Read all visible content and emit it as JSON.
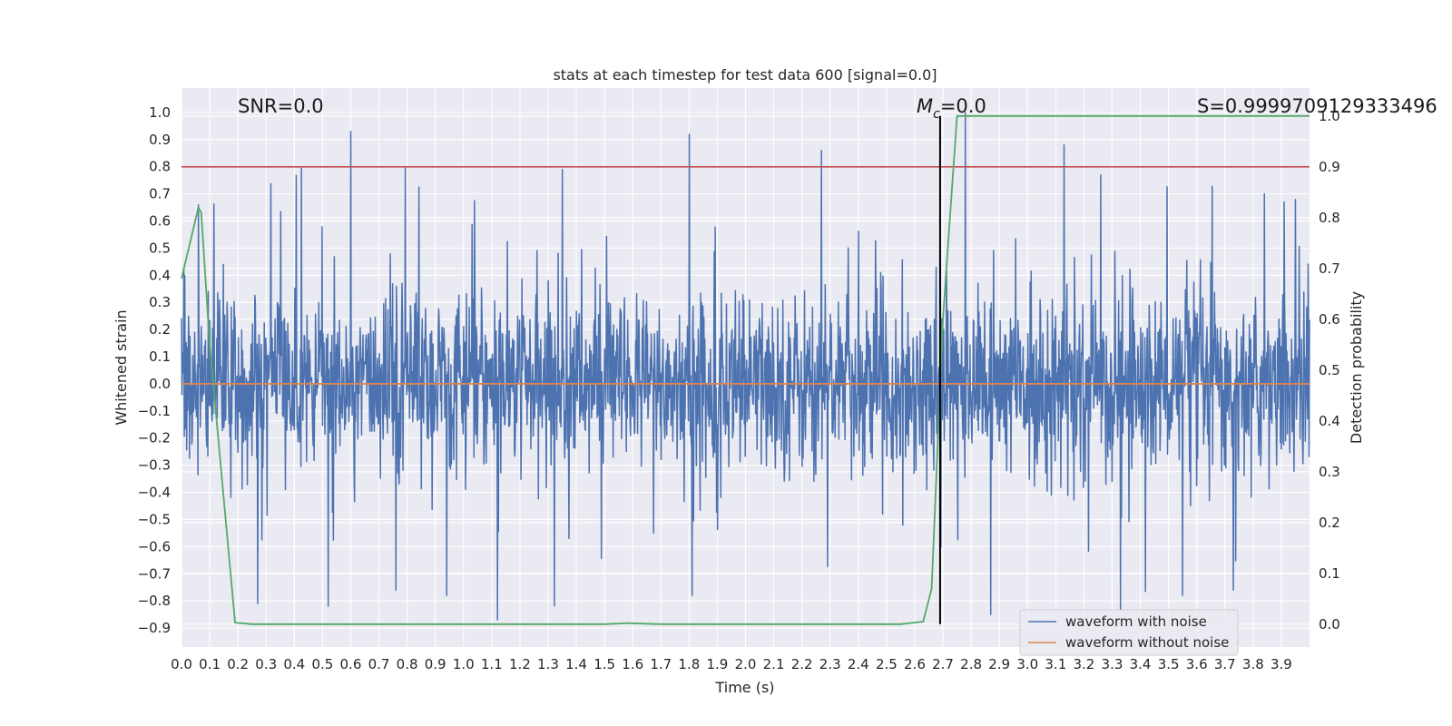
{
  "chart_data": {
    "type": "line",
    "title": "stats at each timestep for test data 600 [signal=0.0]",
    "xlabel": "Time (s)",
    "ylabel": "Whitened strain",
    "y2label": "Detection probability",
    "xlim": [
      0.0,
      4.0
    ],
    "ylim": [
      -0.97,
      1.09
    ],
    "y2lim": [
      -0.045,
      1.055
    ],
    "xticks": [
      0.0,
      0.1,
      0.2,
      0.3,
      0.4,
      0.5,
      0.6,
      0.7,
      0.8,
      0.9,
      1.0,
      1.1,
      1.2,
      1.3,
      1.4,
      1.5,
      1.6,
      1.7,
      1.8,
      1.9,
      2.0,
      2.1,
      2.2,
      2.3,
      2.4,
      2.5,
      2.6,
      2.7,
      2.8,
      2.9,
      3.0,
      3.1,
      3.2,
      3.3,
      3.4,
      3.5,
      3.6,
      3.7,
      3.8,
      3.9
    ],
    "xtick_labels": [
      "0.0",
      "0.1",
      "0.2",
      "0.3",
      "0.4",
      "0.5",
      "0.6",
      "0.7",
      "0.8",
      "0.9",
      "1.0",
      "1.1",
      "1.2",
      "1.3",
      "1.4",
      "1.5",
      "1.6",
      "1.7",
      "1.8",
      "1.9",
      "2.0",
      "2.1",
      "2.2",
      "2.3",
      "2.4",
      "2.5",
      "2.6",
      "2.7",
      "2.8",
      "2.9",
      "3.0",
      "3.1",
      "3.2",
      "3.3",
      "3.4",
      "3.5",
      "3.6",
      "3.7",
      "3.8",
      "3.9"
    ],
    "yticks": [
      -0.9,
      -0.8,
      -0.7,
      -0.6,
      -0.5,
      -0.4,
      -0.3,
      -0.2,
      -0.1,
      0.0,
      0.1,
      0.2,
      0.3,
      0.4,
      0.5,
      0.6,
      0.7,
      0.8,
      0.9,
      1.0
    ],
    "ytick_labels": [
      "−0.9",
      "−0.8",
      "−0.7",
      "−0.6",
      "−0.5",
      "−0.4",
      "−0.3",
      "−0.2",
      "−0.1",
      "0.0",
      "0.1",
      "0.2",
      "0.3",
      "0.4",
      "0.5",
      "0.6",
      "0.7",
      "0.8",
      "0.9",
      "1.0"
    ],
    "y2ticks": [
      0.0,
      0.1,
      0.2,
      0.3,
      0.4,
      0.5,
      0.6,
      0.7,
      0.8,
      0.9,
      1.0
    ],
    "y2tick_labels": [
      "0.0",
      "0.1",
      "0.2",
      "0.3",
      "0.4",
      "0.5",
      "0.6",
      "0.7",
      "0.8",
      "0.9",
      "1.0"
    ],
    "series": [
      {
        "name": "waveform with noise",
        "axis": "left",
        "color": "#4c72b0",
        "kind": "noise",
        "summary": "dense noise between about -0.87 and 1.0, mostly within -0.5 to 0.6",
        "spikes": [
          [
            0.06,
            0.66
          ],
          [
            0.6,
            0.93
          ],
          [
            1.8,
            0.92
          ],
          [
            1.35,
            0.79
          ],
          [
            2.27,
            0.86
          ],
          [
            2.78,
            1.0
          ],
          [
            3.13,
            0.88
          ],
          [
            3.26,
            0.77
          ],
          [
            3.84,
            0.7
          ],
          [
            3.91,
            0.67
          ],
          [
            1.12,
            -0.87
          ],
          [
            0.27,
            -0.81
          ],
          [
            0.52,
            -0.82
          ],
          [
            2.87,
            -0.85
          ],
          [
            3.33,
            -0.83
          ],
          [
            1.81,
            -0.78
          ],
          [
            0.76,
            -0.76
          ],
          [
            0.94,
            -0.78
          ],
          [
            3.73,
            -0.76
          ],
          [
            3.55,
            -0.78
          ]
        ]
      },
      {
        "name": "waveform without noise",
        "axis": "left",
        "color": "#dd8452",
        "x": [
          0.0,
          4.0
        ],
        "y": [
          0.0,
          0.0
        ]
      },
      {
        "name": "detection probability",
        "axis": "right",
        "color": "#55a868",
        "x": [
          0.0,
          0.06,
          0.07,
          0.1,
          0.19,
          0.25,
          0.6,
          1.2,
          1.5,
          1.58,
          1.7,
          2.2,
          2.55,
          2.63,
          2.66,
          2.7,
          2.75,
          3.0,
          3.5,
          4.0
        ],
        "y": [
          0.68,
          0.82,
          0.81,
          0.55,
          0.003,
          0.0,
          0.0,
          0.0,
          0.0,
          0.002,
          0.0,
          0.0,
          0.0,
          0.005,
          0.07,
          0.6,
          1.0,
          1.0,
          1.0,
          1.0
        ]
      }
    ],
    "threshold_line": {
      "axis": "right",
      "value": 0.9,
      "color": "#c44e52"
    },
    "marker_line": {
      "x": 2.69,
      "y_from": 0.0,
      "y_to": 1.0,
      "axis": "right",
      "color": "#000000"
    },
    "annotations": {
      "snr": "SNR=0.0",
      "mc_symbol": "M",
      "mc_subscript": "c",
      "mc_value": "=0.0",
      "score": "S=0.9999709129333496"
    },
    "legend": {
      "placement": "lower-right",
      "entries": [
        {
          "label": "waveform with noise",
          "color": "#4c72b0"
        },
        {
          "label": "waveform without noise",
          "color": "#dd8452"
        }
      ]
    },
    "style": {
      "background": "#eaeaf2",
      "grid": true,
      "grid_color": "#ffffff"
    }
  }
}
